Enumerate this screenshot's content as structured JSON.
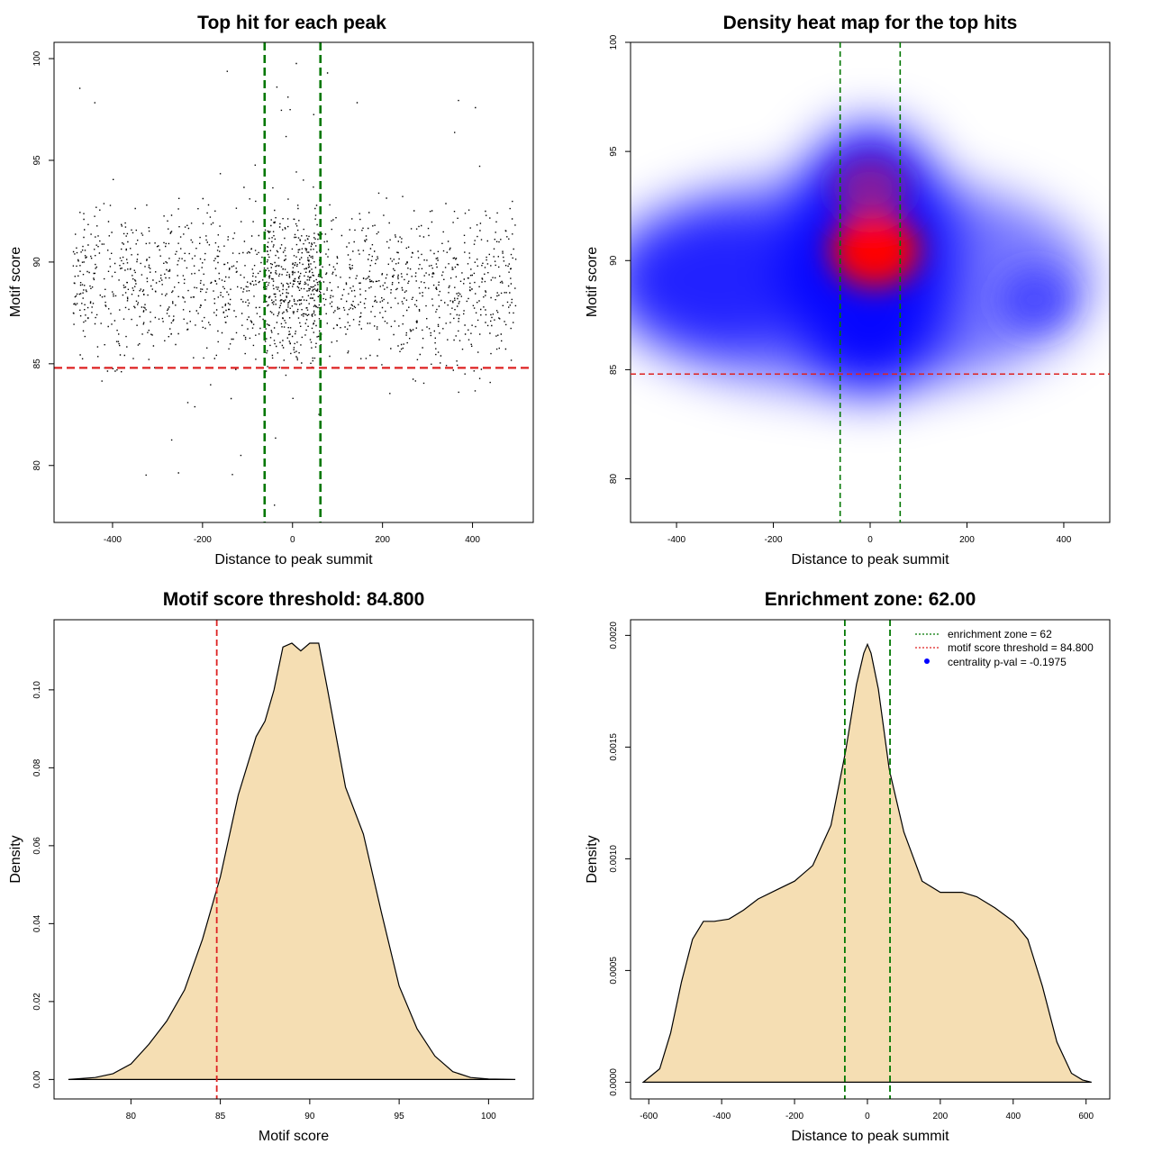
{
  "colors": {
    "points": "#000000",
    "threshold_line": "#dd2222",
    "zone_line": "#007700",
    "density_fill": "#f5deb3",
    "density_line": "#000000",
    "heat_low": "#0000ff",
    "heat_high": "#ff0000",
    "legend_point": "#0000ff"
  },
  "chart_data": [
    {
      "type": "scatter",
      "title": "Top hit for each peak",
      "xlabel": "Distance to peak summit",
      "ylabel": "Motif score",
      "xlim": [
        -530,
        535
      ],
      "ylim": [
        77.2,
        100.8
      ],
      "xticks": [
        -400,
        -200,
        0,
        200,
        400
      ],
      "yticks": [
        80,
        85,
        90,
        95,
        100
      ],
      "grid": false,
      "hlines": [
        {
          "y": 84.8,
          "role": "motif score threshold"
        }
      ],
      "vlines": [
        {
          "x": -62,
          "role": "enrichment zone"
        },
        {
          "x": 62,
          "role": "enrichment zone"
        }
      ],
      "point_cloud": {
        "x_range": [
          -490,
          495
        ],
        "core_y_range": [
          84,
          94
        ],
        "y_peak": 89,
        "center_enriched_x": [
          -62,
          62
        ],
        "outliers_y_range": [
          78,
          100
        ]
      }
    },
    {
      "type": "heatmap",
      "title": "Density heat map for the top hits",
      "xlabel": "Distance to peak summit",
      "ylabel": "Motif score",
      "xlim": [
        -495,
        495
      ],
      "ylim": [
        78,
        100
      ],
      "xticks": [
        -400,
        -200,
        0,
        200,
        400
      ],
      "yticks": [
        80,
        85,
        90,
        95,
        100
      ],
      "grid": false,
      "hlines": [
        {
          "y": 84.8,
          "role": "motif score threshold"
        }
      ],
      "vlines": [
        {
          "x": -62,
          "role": "enrichment zone"
        },
        {
          "x": 62,
          "role": "enrichment zone"
        }
      ],
      "hotspots": [
        {
          "x": 10,
          "y": 90.5,
          "intensity": 1.0
        },
        {
          "x": 0,
          "y": 93.3,
          "intensity": 0.6
        },
        {
          "x": 340,
          "y": 88.2,
          "intensity": 0.45
        }
      ]
    },
    {
      "type": "area",
      "title": "Motif score threshold: 84.800",
      "xlabel": "Motif score",
      "ylabel": "Density",
      "xlim": [
        75.7,
        102.5
      ],
      "ylim": [
        -0.005,
        0.118
      ],
      "xticks": [
        80,
        85,
        90,
        95,
        100
      ],
      "yticks": [
        0.0,
        0.02,
        0.04,
        0.06,
        0.08,
        0.1
      ],
      "ytick_labels": [
        "0.00",
        "0.02",
        "0.04",
        "0.06",
        "0.08",
        "0.10"
      ],
      "grid": false,
      "vlines": [
        {
          "x": 84.8,
          "role": "motif score threshold"
        }
      ],
      "x": [
        76.5,
        78,
        79,
        80,
        81,
        82,
        83,
        84,
        85,
        86,
        87,
        87.5,
        88,
        88.5,
        89,
        89.5,
        90,
        90.5,
        91,
        92,
        93,
        94,
        95,
        96,
        97,
        98,
        99,
        100,
        101.5
      ],
      "y": [
        0.0,
        0.0005,
        0.0015,
        0.004,
        0.009,
        0.015,
        0.023,
        0.036,
        0.052,
        0.073,
        0.088,
        0.092,
        0.1,
        0.111,
        0.112,
        0.11,
        0.112,
        0.112,
        0.1,
        0.075,
        0.063,
        0.043,
        0.024,
        0.013,
        0.006,
        0.002,
        0.0005,
        0.0001,
        0.0
      ]
    },
    {
      "type": "area",
      "title": "Enrichment zone: 62.00",
      "xlabel": "Distance to peak summit",
      "ylabel": "Density",
      "xlim": [
        -650,
        665
      ],
      "ylim": [
        -7.5e-05,
        0.00207
      ],
      "xticks": [
        -600,
        -400,
        -200,
        0,
        200,
        400,
        600
      ],
      "yticks": [
        0.0,
        0.0005,
        0.001,
        0.0015,
        0.002
      ],
      "ytick_labels": [
        "0.0000",
        "0.0005",
        "0.0010",
        "0.0015",
        "0.0020"
      ],
      "grid": false,
      "legend_position": "top-right",
      "vlines": [
        {
          "x": -62,
          "role": "enrichment zone"
        },
        {
          "x": 62,
          "role": "enrichment zone"
        }
      ],
      "x": [
        -615,
        -570,
        -540,
        -510,
        -480,
        -450,
        -420,
        -380,
        -340,
        -300,
        -250,
        -200,
        -150,
        -100,
        -60,
        -30,
        -10,
        0,
        10,
        30,
        60,
        100,
        150,
        200,
        230,
        260,
        300,
        350,
        400,
        440,
        480,
        520,
        560,
        590,
        615
      ],
      "y": [
        0.0,
        6e-05,
        0.00022,
        0.00045,
        0.00064,
        0.00072,
        0.00072,
        0.00073,
        0.00077,
        0.00082,
        0.00086,
        0.0009,
        0.00097,
        0.00115,
        0.00148,
        0.00178,
        0.00192,
        0.00196,
        0.00192,
        0.00176,
        0.0014,
        0.00112,
        0.0009,
        0.00085,
        0.00085,
        0.00085,
        0.00083,
        0.00078,
        0.00072,
        0.00064,
        0.00043,
        0.00018,
        4e-05,
        1e-05,
        0.0
      ]
    }
  ],
  "legend": {
    "entries": [
      {
        "label": "enrichment zone = 62",
        "symbol": "dotted-line",
        "color": "#007700"
      },
      {
        "label": "motif score threshold = 84.800",
        "symbol": "dotted-line",
        "color": "#dd2222"
      },
      {
        "label": "centrality p-val = -0.1975",
        "symbol": "point",
        "color": "#0000ff"
      }
    ]
  }
}
